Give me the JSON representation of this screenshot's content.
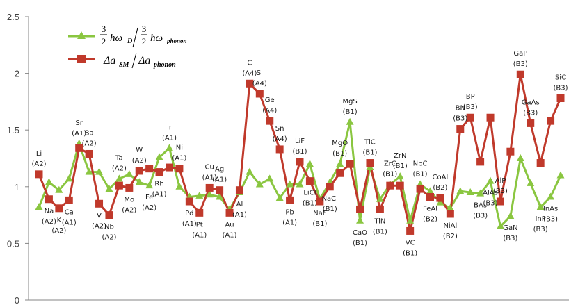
{
  "chart_data": {
    "type": "line",
    "title": "",
    "xlabel": "",
    "ylabel": "",
    "ylim": [
      0,
      2.5
    ],
    "yticks": [
      "0",
      "0.5",
      "1",
      "1.5",
      "2",
      "2.5"
    ],
    "grid": false,
    "legend_position": "top-left",
    "categories": [
      "Li",
      "Na",
      "K",
      "Ca",
      "Sr",
      "Ba",
      "V",
      "Nb",
      "Ta",
      "Mo",
      "W",
      "Fe",
      "Rh",
      "Ir",
      "Ni",
      "Pd",
      "Pt",
      "Cu",
      "Ag",
      "Au",
      "Al",
      "C",
      "Si",
      "Ge",
      "Sn",
      "Pb",
      "LiF",
      "LiCl",
      "NaF",
      "NaCl",
      "MgO",
      "MgS",
      "CaO",
      "TiC",
      "TiN",
      "ZrC",
      "ZrN",
      "VC",
      "NbC",
      "FeAl",
      "CoAl",
      "NiAl",
      "BN",
      "BP",
      "BAs",
      "AlAs",
      "AlP",
      "GaN",
      "GaP",
      "GaAs",
      "InP",
      "InAs",
      "SiC"
    ],
    "labels": [
      {
        "name": "Li",
        "struct": "(A2)",
        "pos": "above"
      },
      {
        "name": "Na",
        "struct": "(A2)",
        "pos": "below"
      },
      {
        "name": "K",
        "struct": "(A2)",
        "pos": "below"
      },
      {
        "name": "Ca",
        "struct": "(A1)",
        "pos": "below"
      },
      {
        "name": "Sr",
        "struct": "(A1)",
        "pos": "above"
      },
      {
        "name": "Ba",
        "struct": "(A2)",
        "pos": "above"
      },
      {
        "name": "V",
        "struct": "(A2)",
        "pos": "below"
      },
      {
        "name": "Nb",
        "struct": "(A2)",
        "pos": "below"
      },
      {
        "name": "Ta",
        "struct": "(A2)",
        "pos": "above"
      },
      {
        "name": "Mo",
        "struct": "(A2)",
        "pos": "below"
      },
      {
        "name": "W",
        "struct": "(A2)",
        "pos": "above"
      },
      {
        "name": "Fe",
        "struct": "(A2)",
        "pos": "below"
      },
      {
        "name": "Rh",
        "struct": "(A1)",
        "pos": "below"
      },
      {
        "name": "Ir",
        "struct": "(A1)",
        "pos": "above"
      },
      {
        "name": "Ni",
        "struct": "(A1)",
        "pos": "above"
      },
      {
        "name": "Pd",
        "struct": "(A1)",
        "pos": "below"
      },
      {
        "name": "Pt",
        "struct": "(A1)",
        "pos": "below"
      },
      {
        "name": "Cu",
        "struct": "(A1)",
        "pos": "above"
      },
      {
        "name": "Ag",
        "struct": "(A1)",
        "pos": "above"
      },
      {
        "name": "Au",
        "struct": "(A1)",
        "pos": "below"
      },
      {
        "name": "Al",
        "struct": "(A1)",
        "pos": "below"
      },
      {
        "name": "C",
        "struct": "(A4)",
        "pos": "above"
      },
      {
        "name": "Si",
        "struct": "(A4)",
        "pos": "above"
      },
      {
        "name": "Ge",
        "struct": "(A4)",
        "pos": "above"
      },
      {
        "name": "Sn",
        "struct": "(A4)",
        "pos": "above"
      },
      {
        "name": "Pb",
        "struct": "(A1)",
        "pos": "below"
      },
      {
        "name": "LiF",
        "struct": "(B1)",
        "pos": "above"
      },
      {
        "name": "LiCl",
        "struct": "(B1)",
        "pos": "below"
      },
      {
        "name": "NaF",
        "struct": "(B1)",
        "pos": "below"
      },
      {
        "name": "NaCl",
        "struct": "(B1)",
        "pos": "below"
      },
      {
        "name": "MgO",
        "struct": "(B1)",
        "pos": "above"
      },
      {
        "name": "MgS",
        "struct": "(B1)",
        "pos": "above"
      },
      {
        "name": "CaO",
        "struct": "(B1)",
        "pos": "below"
      },
      {
        "name": "TiC",
        "struct": "(B1)",
        "pos": "above"
      },
      {
        "name": "TiN",
        "struct": "(B1)",
        "pos": "below"
      },
      {
        "name": "ZrC",
        "struct": "(B1)",
        "pos": "above"
      },
      {
        "name": "ZrN",
        "struct": "(B1)",
        "pos": "above"
      },
      {
        "name": "VC",
        "struct": "(B1)",
        "pos": "below"
      },
      {
        "name": "NbC",
        "struct": "(B1)",
        "pos": "above"
      },
      {
        "name": "FeAl",
        "struct": "(B2)",
        "pos": "below"
      },
      {
        "name": "CoAl",
        "struct": "(B2)",
        "pos": "above"
      },
      {
        "name": "NiAl",
        "struct": "(B2)",
        "pos": "below"
      },
      {
        "name": "BN",
        "struct": "(B3)",
        "pos": "above"
      },
      {
        "name": "BP",
        "struct": "(B3)",
        "pos": "above"
      },
      {
        "name": "BAs",
        "struct": "(B3)",
        "pos": "below"
      },
      {
        "name": "AlAs",
        "struct": "(B3)",
        "pos": "below"
      },
      {
        "name": "AlP",
        "struct": "(B3)",
        "pos": "above"
      },
      {
        "name": "GaN",
        "struct": "(B3)",
        "pos": "below"
      },
      {
        "name": "GaP",
        "struct": "(B3)",
        "pos": "above"
      },
      {
        "name": "GaAs",
        "struct": "(B3)",
        "pos": "above"
      },
      {
        "name": "InP",
        "struct": "(B3)",
        "pos": "below"
      },
      {
        "name": "InAs",
        "struct": "(B3)",
        "pos": "below"
      },
      {
        "name": "SiC",
        "struct": "(B3)",
        "pos": "above"
      }
    ],
    "series": [
      {
        "name": "3/2 ħω_D / 3/2 ħω_phonon",
        "color": "#8ac640",
        "marker": "triangle",
        "values": [
          0.82,
          1.04,
          0.97,
          1.07,
          1.38,
          1.13,
          1.13,
          0.98,
          1.07,
          1.11,
          1.04,
          1.01,
          1.26,
          1.34,
          1.0,
          0.91,
          0.92,
          0.93,
          0.91,
          0.8,
          0.95,
          1.13,
          1.02,
          1.07,
          0.9,
          1.02,
          1.02,
          1.2,
          0.89,
          1.04,
          1.2,
          1.57,
          0.7,
          1.17,
          0.89,
          1.02,
          1.09,
          0.7,
          1.02,
          0.96,
          0.86,
          0.81,
          0.96,
          0.95,
          0.94,
          1.05,
          0.65,
          0.74,
          1.25,
          1.03,
          0.82,
          0.91,
          1.1
        ]
      },
      {
        "name": "Δa_SM / Δa_phonon",
        "color": "#c0392b",
        "marker": "square",
        "values": [
          1.11,
          0.89,
          0.81,
          0.88,
          1.34,
          1.29,
          0.85,
          0.75,
          1.01,
          0.99,
          1.14,
          1.16,
          1.13,
          1.17,
          1.16,
          0.87,
          0.77,
          0.99,
          0.97,
          0.77,
          0.97,
          1.91,
          1.82,
          1.58,
          1.33,
          0.88,
          1.22,
          1.05,
          0.87,
          1.0,
          1.12,
          1.2,
          0.8,
          1.21,
          0.8,
          1.01,
          1.01,
          0.61,
          0.98,
          0.91,
          0.9,
          0.76,
          1.51,
          1.61,
          1.22,
          1.61,
          0.87,
          1.31,
          1.99,
          1.56,
          1.21,
          1.58,
          1.78
        ]
      }
    ]
  },
  "legend": {
    "series1": {
      "frac_num": "3",
      "frac_den": "2",
      "hw": "ħω",
      "sub_a": "D",
      "sub_b": "phonon"
    },
    "series2": {
      "delta_a": "Δa",
      "sub_a": "SM",
      "sub_b": "phonon"
    }
  }
}
